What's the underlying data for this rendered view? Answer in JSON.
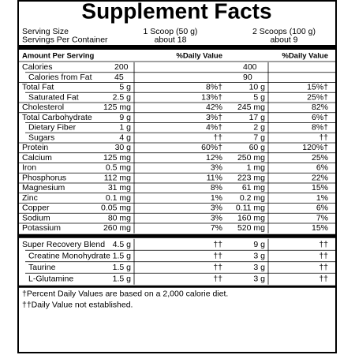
{
  "title": "Supplement Facts",
  "serving": [
    [
      "Serving Size",
      "1 Scoop (50 g)",
      "2 Scoops (100 g)"
    ],
    [
      "Servings Per Container",
      "about 18",
      "about 9"
    ]
  ],
  "header": [
    "Amount Per Serving",
    "%Daily Value",
    "%Daily Value"
  ],
  "sections": [
    [
      {
        "name": "Calories",
        "amount1": "200",
        "amount2": "400",
        "sub": [
          {
            "name": "Calories from Fat",
            "amount1": "45",
            "amount2": "90"
          }
        ]
      },
      {
        "name": "Total Fat",
        "amount1": "5 g",
        "dv1": "8%†",
        "amount2": "10 g",
        "dv2": "15%†",
        "sub": [
          {
            "name": "Saturated Fat",
            "amount1": "2.5 g",
            "dv1": "13%†",
            "amount2": "5 g",
            "dv2": "25%†"
          }
        ]
      },
      {
        "name": "Cholesterol",
        "amount1": "125 mg",
        "dv1": "42%",
        "amount2": "245 mg",
        "dv2": "82%"
      },
      {
        "name": "Total Carbohydrate",
        "amount1": "9 g",
        "dv1": "3%†",
        "amount2": "17 g",
        "dv2": "6%†",
        "sub": [
          {
            "name": "Dietary Fiber",
            "amount1": "1 g",
            "dv1": "4%†",
            "amount2": "2 g",
            "dv2": "8%†"
          },
          {
            "name": "Sugars",
            "amount1": "4 g",
            "dv1": "††",
            "amount2": "7 g",
            "dv2": "††"
          }
        ]
      },
      {
        "name": "Protein",
        "amount1": "30 g",
        "dv1": "60%†",
        "amount2": "60 g",
        "dv2": "120%†"
      },
      {
        "name": "Calcium",
        "amount1": "125 mg",
        "dv1": "12%",
        "amount2": "250 mg",
        "dv2": "25%"
      },
      {
        "name": "Iron",
        "amount1": "0.5 mg",
        "dv1": "3%",
        "amount2": "1 mg",
        "dv2": "6%"
      },
      {
        "name": "Phosphorus",
        "amount1": "112 mg",
        "dv1": "11%",
        "amount2": "223 mg",
        "dv2": "22%"
      },
      {
        "name": "Magnesium",
        "amount1": "31 mg",
        "dv1": "8%",
        "amount2": "61 mg",
        "dv2": "15%"
      },
      {
        "name": "Zinc",
        "amount1": "0.1 mg",
        "dv1": "1%",
        "amount2": "0.2 mg",
        "dv2": "1%"
      },
      {
        "name": "Copper",
        "amount1": "0.05 mg",
        "dv1": "3%",
        "amount2": "0.11 mg",
        "dv2": "6%"
      },
      {
        "name": "Sodium",
        "amount1": "80 mg",
        "dv1": "3%",
        "amount2": "160 mg",
        "dv2": "7%"
      },
      {
        "name": "Potassium",
        "amount1": "260 mg",
        "dv1": "7%",
        "amount2": "520 mg",
        "dv2": "15%"
      }
    ],
    [
      {
        "name": "Super Recovery Blend",
        "amount1": "4.5 g",
        "dv1": "††",
        "amount2": "9 g",
        "dv2": "††",
        "sub": [
          {
            "name": "Creatine Monohydrate",
            "amount1": "1.5 g",
            "dv1": "††",
            "amount2": "3 g",
            "dv2": "††"
          },
          {
            "name": "Taurine",
            "amount1": "1.5 g",
            "dv1": "††",
            "amount2": "3 g",
            "dv2": "††"
          },
          {
            "name": "L-Glutamine",
            "amount1": "1.5 g",
            "dv1": "††",
            "amount2": "3 g",
            "dv2": "††"
          }
        ]
      }
    ]
  ],
  "footnotes": [
    "†Percent Daily Values are based on a 2,000 calorie diet.",
    "††Daily Value not established."
  ]
}
